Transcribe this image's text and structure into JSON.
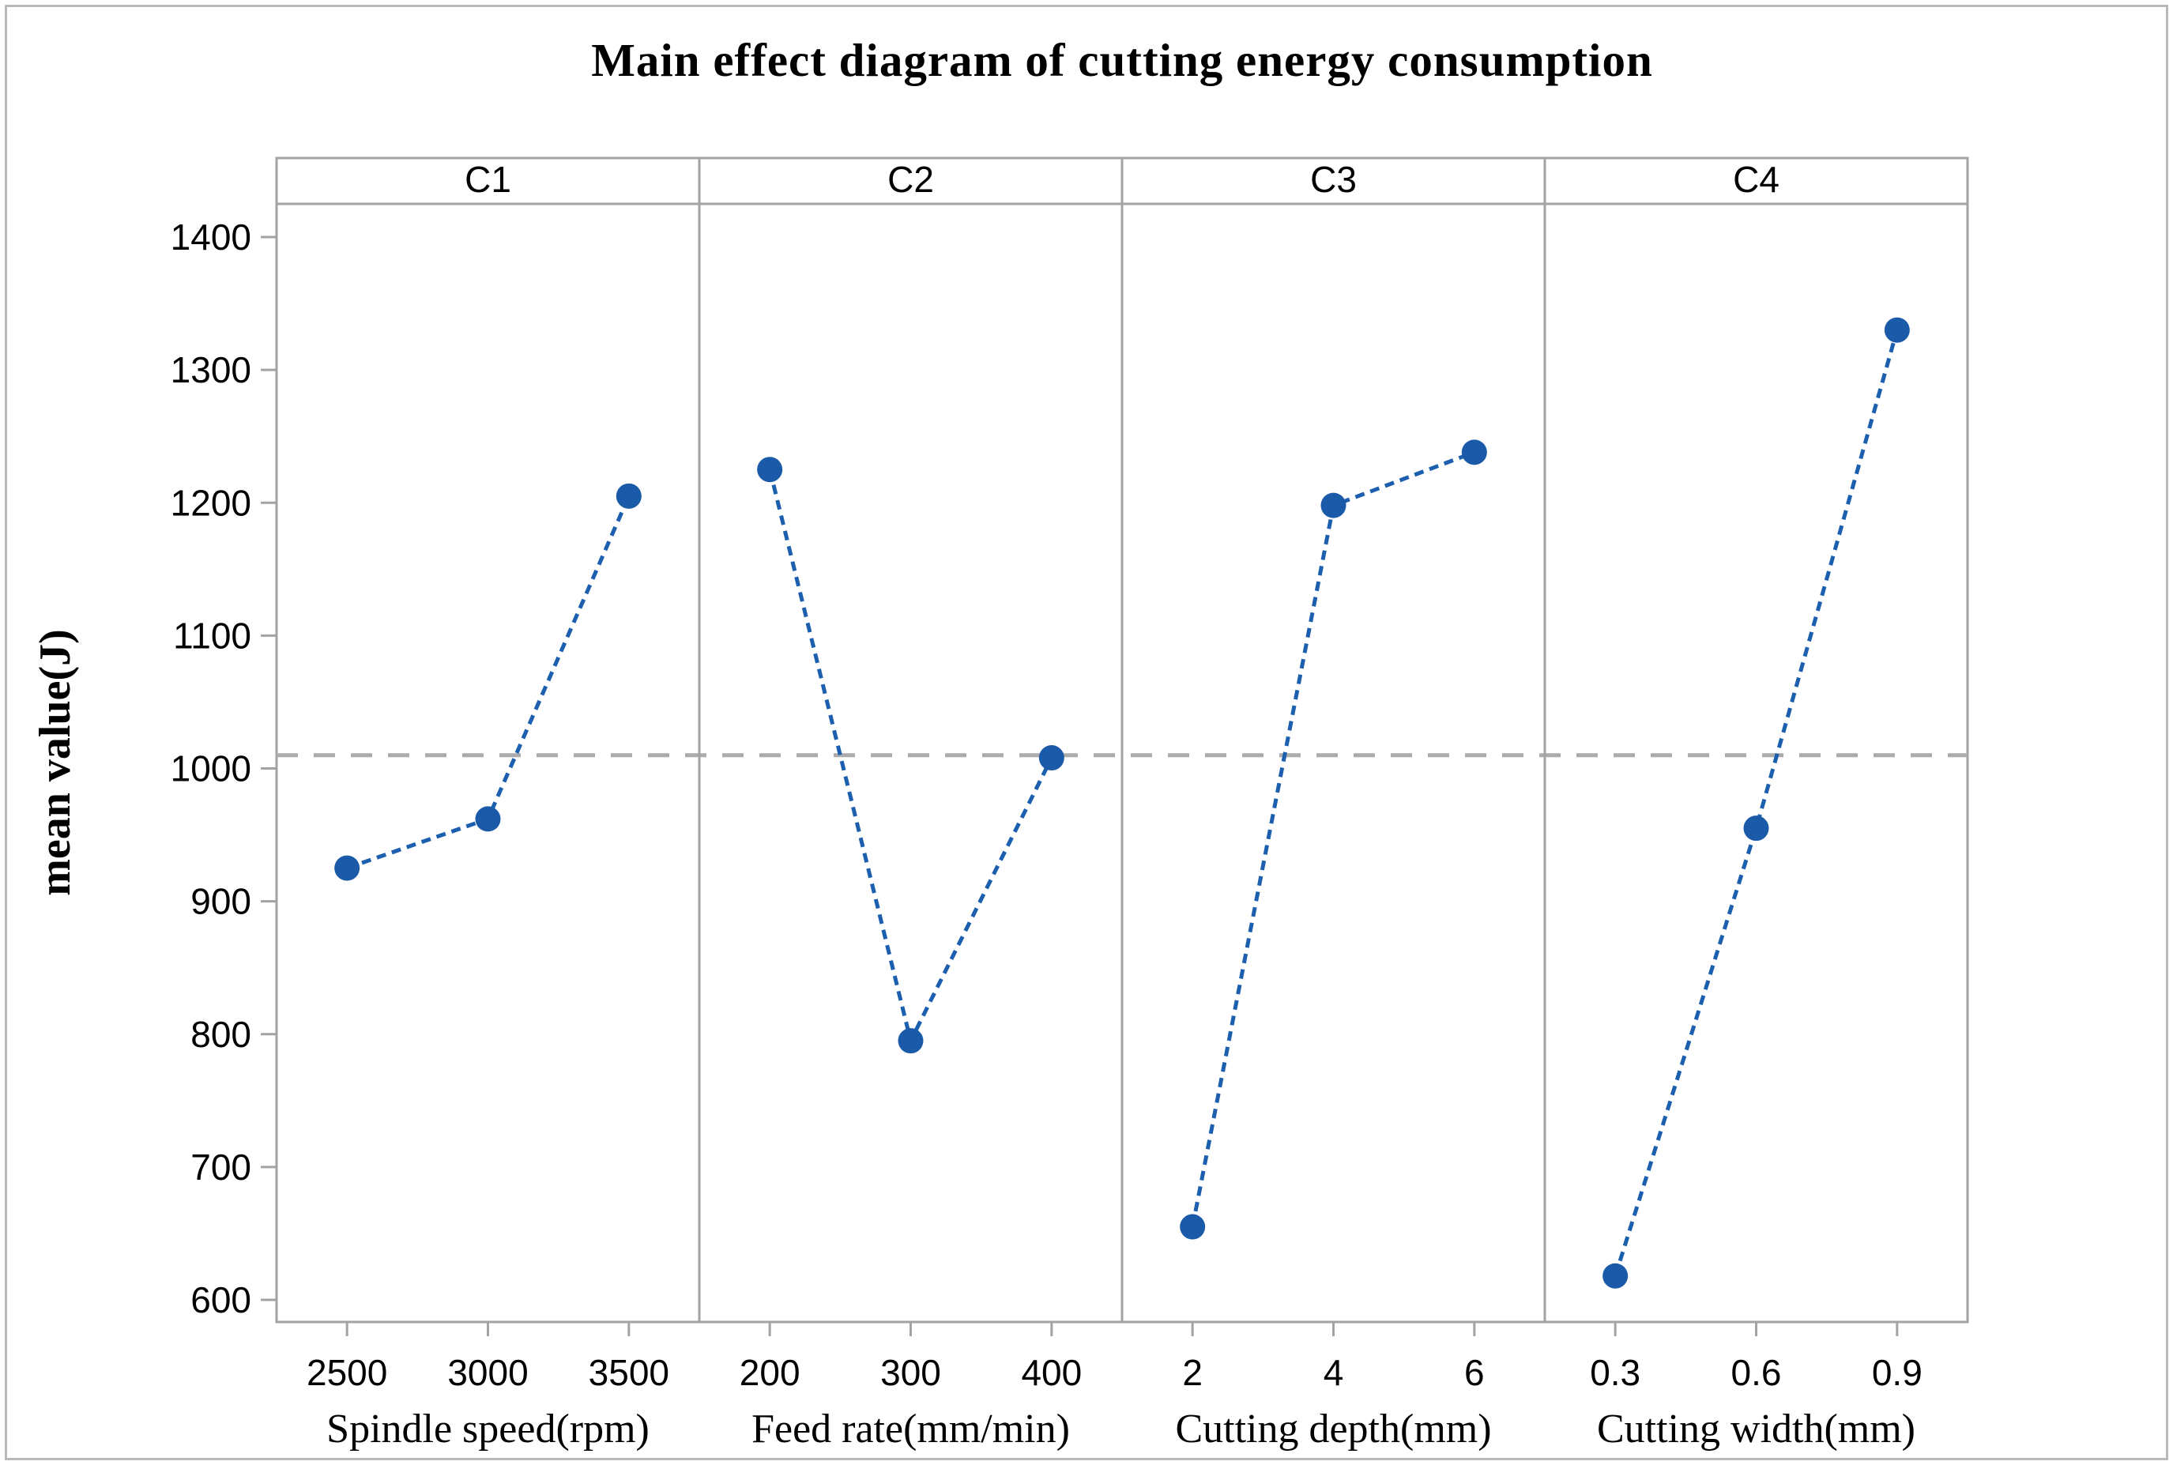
{
  "figure": {
    "title": "Main effect diagram of cutting energy consumption"
  },
  "chart_data": {
    "type": "line",
    "title": "Main effect diagram of cutting energy consumption",
    "ylabel": "mean value(J)",
    "xlabel": "",
    "ylim": [
      600,
      1400
    ],
    "yticks": [
      600,
      700,
      800,
      900,
      1000,
      1100,
      1200,
      1300,
      1400
    ],
    "grid": false,
    "legend": "none",
    "grand_mean": 1010,
    "panels": [
      {
        "header": "C1",
        "factor_label": "Spindle speed(rpm)",
        "categories": [
          "2500",
          "3000",
          "3500"
        ],
        "values": [
          925,
          962,
          1205
        ]
      },
      {
        "header": "C2",
        "factor_label": "Feed rate(mm/min)",
        "categories": [
          "200",
          "300",
          "400"
        ],
        "values": [
          1225,
          795,
          1008
        ]
      },
      {
        "header": "C3",
        "factor_label": "Cutting depth(mm)",
        "categories": [
          "2",
          "4",
          "6"
        ],
        "values": [
          655,
          1198,
          1238
        ]
      },
      {
        "header": "C4",
        "factor_label": "Cutting width(mm)",
        "categories": [
          "0.3",
          "0.6",
          "0.9"
        ],
        "values": [
          618,
          955,
          1330
        ]
      }
    ],
    "colors": {
      "series": "#1c5fae",
      "marker": "#1a5aa8",
      "mean_line": "#ababab",
      "frame": "#a3a3a3",
      "text": "#000000"
    }
  }
}
